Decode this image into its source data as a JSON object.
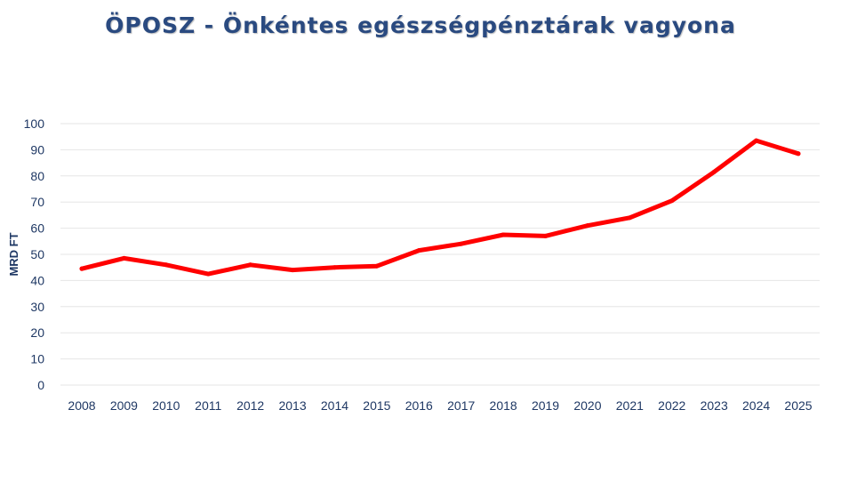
{
  "chart_data": {
    "type": "line",
    "title": "ÖPOSZ - Önkéntes egészségpénztárak vagyona",
    "xlabel": "",
    "ylabel": "MRD FT",
    "x": [
      "2008",
      "2009",
      "2010",
      "2011",
      "2012",
      "2013",
      "2014",
      "2015",
      "2016",
      "2017",
      "2018",
      "2019",
      "2020",
      "2021",
      "2022",
      "2023",
      "2024",
      "2025"
    ],
    "series": [
      {
        "values": [
          44.5,
          48.5,
          46,
          42.5,
          46,
          44,
          45,
          45.5,
          51.5,
          54,
          57.5,
          57,
          61,
          64,
          70.5,
          81.5,
          93.5,
          88.5
        ]
      }
    ],
    "yticks": [
      "0",
      "10",
      "20",
      "30",
      "40",
      "50",
      "60",
      "70",
      "80",
      "90",
      "100"
    ],
    "ylim": [
      0,
      100
    ],
    "grid": true,
    "legend": "none",
    "colors": {
      "line": "#ff0000",
      "grid": "#e6e6e6",
      "text": "#1f3864",
      "title": "#2a4a80"
    }
  }
}
